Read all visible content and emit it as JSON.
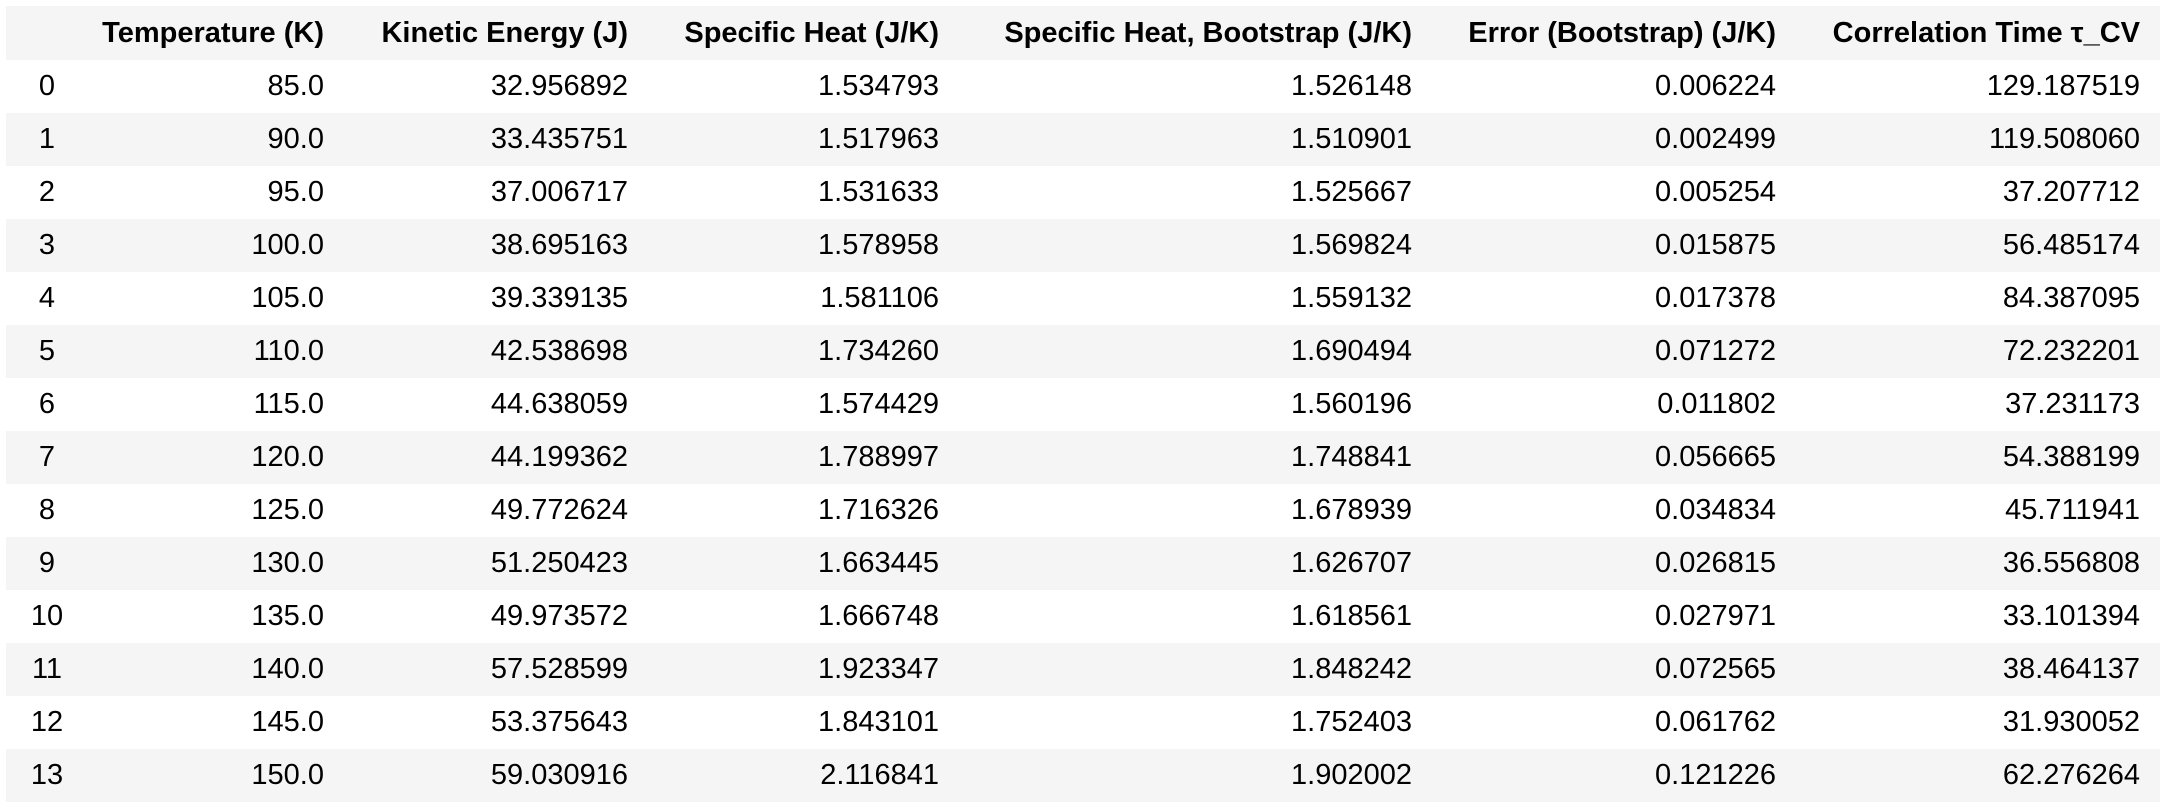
{
  "table": {
    "columns": [
      "",
      "Temperature (K)",
      "Kinetic Energy (J)",
      "Specific Heat (J/K)",
      "Specific Heat, Bootstrap (J/K)",
      "Error (Bootstrap) (J/K)",
      "Correlation Time τ_CV"
    ],
    "rows": [
      [
        "0",
        "85.0",
        "32.956892",
        "1.534793",
        "1.526148",
        "0.006224",
        "129.187519"
      ],
      [
        "1",
        "90.0",
        "33.435751",
        "1.517963",
        "1.510901",
        "0.002499",
        "119.508060"
      ],
      [
        "2",
        "95.0",
        "37.006717",
        "1.531633",
        "1.525667",
        "0.005254",
        "37.207712"
      ],
      [
        "3",
        "100.0",
        "38.695163",
        "1.578958",
        "1.569824",
        "0.015875",
        "56.485174"
      ],
      [
        "4",
        "105.0",
        "39.339135",
        "1.581106",
        "1.559132",
        "0.017378",
        "84.387095"
      ],
      [
        "5",
        "110.0",
        "42.538698",
        "1.734260",
        "1.690494",
        "0.071272",
        "72.232201"
      ],
      [
        "6",
        "115.0",
        "44.638059",
        "1.574429",
        "1.560196",
        "0.011802",
        "37.231173"
      ],
      [
        "7",
        "120.0",
        "44.199362",
        "1.788997",
        "1.748841",
        "0.056665",
        "54.388199"
      ],
      [
        "8",
        "125.0",
        "49.772624",
        "1.716326",
        "1.678939",
        "0.034834",
        "45.711941"
      ],
      [
        "9",
        "130.0",
        "51.250423",
        "1.663445",
        "1.626707",
        "0.026815",
        "36.556808"
      ],
      [
        "10",
        "135.0",
        "49.973572",
        "1.666748",
        "1.618561",
        "0.027971",
        "33.101394"
      ],
      [
        "11",
        "140.0",
        "57.528599",
        "1.923347",
        "1.848242",
        "0.072565",
        "38.464137"
      ],
      [
        "12",
        "145.0",
        "53.375643",
        "1.843101",
        "1.752403",
        "0.061762",
        "31.930052"
      ],
      [
        "13",
        "150.0",
        "59.030916",
        "2.116841",
        "1.902002",
        "0.121226",
        "62.276264"
      ]
    ]
  }
}
